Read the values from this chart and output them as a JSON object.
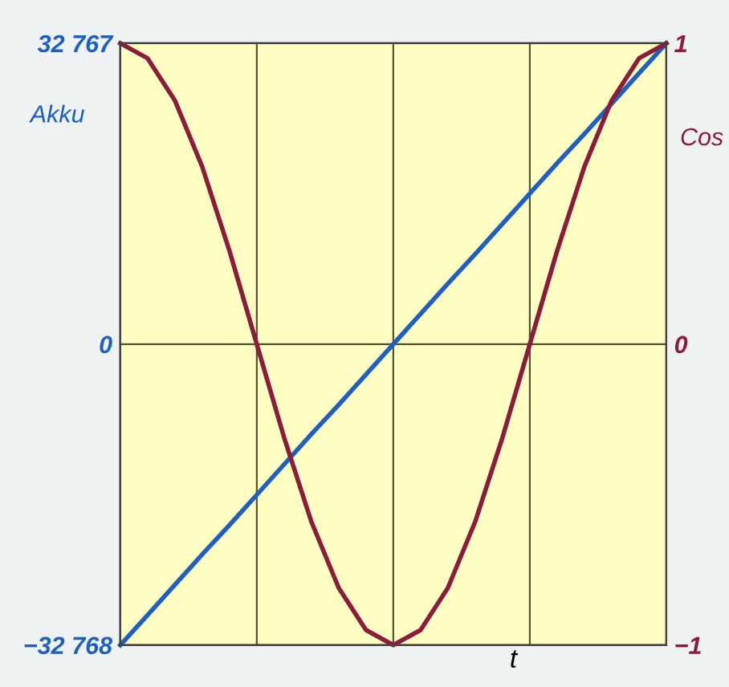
{
  "chart_data": {
    "type": "line",
    "xlabel": "t",
    "ylabel": "Akku",
    "y2label": "Cos",
    "categories": [
      null,
      null,
      null,
      null,
      null,
      null,
      null,
      null,
      null,
      null,
      null,
      null,
      null,
      null,
      null,
      null,
      null,
      null,
      null,
      null,
      null
    ],
    "ylim": [
      -32768,
      32767
    ],
    "yticks": [
      {
        "value": -32768,
        "label": "−32 768"
      },
      0,
      {
        "value": 32767,
        "label": "32 767"
      }
    ],
    "y2lim": [
      -1,
      1
    ],
    "y2ticks": [
      {
        "value": -1,
        "label": "−1"
      },
      0,
      1
    ],
    "grid": true,
    "series": [
      {
        "color": "#8b1c3c",
        "axis": "y2",
        "values": [
          1,
          0.95,
          0.81,
          0.59,
          0.31,
          0,
          -0.31,
          -0.59,
          -0.81,
          -0.95,
          -1,
          -0.95,
          -0.81,
          -0.59,
          -0.31,
          0,
          0.31,
          0.59,
          0.81,
          0.95,
          1
        ]
      },
      {
        "color": "#1f5fbf",
        "axis": "y",
        "values": [
          -32768,
          -29500,
          -26200,
          -22900,
          -19700,
          -16400,
          -13100,
          -9800,
          -6600,
          -3300,
          0,
          3300,
          6600,
          9800,
          13100,
          16400,
          19700,
          22900,
          26200,
          29500,
          32767
        ]
      }
    ]
  }
}
